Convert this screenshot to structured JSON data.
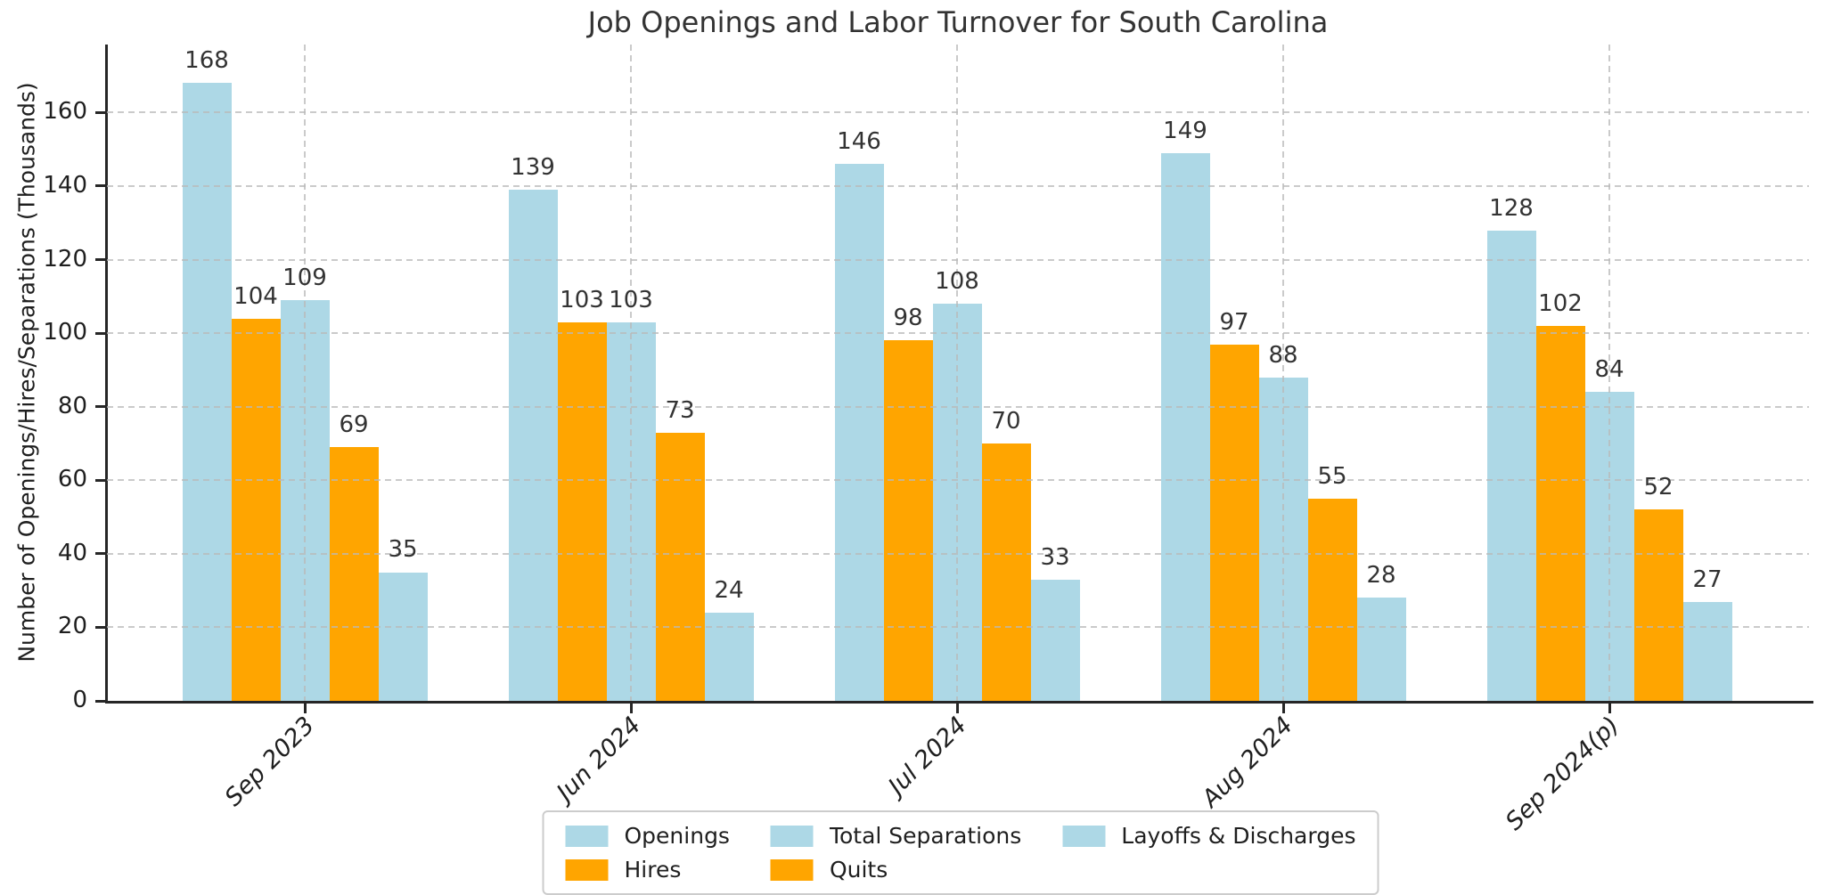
{
  "chart_data": {
    "type": "bar",
    "title": "Job Openings and Labor Turnover for South Carolina",
    "xlabel": "",
    "ylabel": "Number of Openings/Hires/Separations (Thousands)",
    "categories": [
      "Sep 2023",
      "Jun 2024",
      "Jul 2024",
      "Aug 2024",
      "Sep 2024(p)"
    ],
    "series": [
      {
        "name": "Openings",
        "color": "#ADD8E6",
        "values": [
          168,
          139,
          146,
          149,
          128
        ]
      },
      {
        "name": "Hires",
        "color": "#FFA500",
        "values": [
          104,
          103,
          98,
          97,
          102
        ]
      },
      {
        "name": "Total Separations",
        "color": "#ADD8E6",
        "values": [
          109,
          103,
          108,
          88,
          84
        ]
      },
      {
        "name": "Quits",
        "color": "#FFA500",
        "values": [
          69,
          73,
          70,
          55,
          52
        ]
      },
      {
        "name": "Layoffs & Discharges",
        "color": "#ADD8E6",
        "values": [
          35,
          24,
          33,
          28,
          27
        ]
      }
    ],
    "yticks": [
      0,
      20,
      40,
      60,
      80,
      100,
      120,
      140,
      160
    ],
    "ylim": [
      0,
      178.5
    ],
    "grid": true,
    "grid_style": "dashed",
    "bar_value_labels": true,
    "x_tick_style": "italic, rotated 45deg",
    "legend_position": "bottom-center",
    "legend_columns": 3,
    "legend_entries": [
      {
        "label": "Openings",
        "color": "#ADD8E6"
      },
      {
        "label": "Hires",
        "color": "#FFA500"
      },
      {
        "label": "Total Separations",
        "color": "#ADD8E6"
      },
      {
        "label": "Quits",
        "color": "#FFA500"
      },
      {
        "label": "Layoffs & Discharges",
        "color": "#ADD8E6"
      }
    ],
    "colors": {
      "blue_series": "#ADD8E6",
      "orange_series": "#FFA500",
      "axis": "#262626",
      "grid": "#cccccc",
      "text": "#1f1f1f"
    }
  }
}
